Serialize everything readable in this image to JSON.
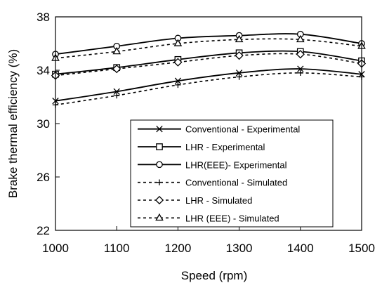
{
  "chart_data": {
    "type": "line",
    "title": "",
    "xlabel": "Speed (rpm)",
    "ylabel": "Brake thermal efficiency (%)",
    "xlim": [
      1000,
      1500
    ],
    "ylim": [
      22,
      38
    ],
    "xticks": [
      1000,
      1100,
      1200,
      1300,
      1400,
      1500
    ],
    "yticks": [
      22,
      26,
      30,
      34,
      38
    ],
    "grid": false,
    "legend_position": "lower-right",
    "x": [
      1000,
      1100,
      1200,
      1300,
      1400,
      1500
    ],
    "series": [
      {
        "name": "Conventional - Experimental",
        "marker": "x",
        "dashed": false,
        "values": [
          31.7,
          32.4,
          33.2,
          33.8,
          34.1,
          33.7
        ]
      },
      {
        "name": "LHR - Experimental",
        "marker": "square",
        "dashed": false,
        "values": [
          33.7,
          34.2,
          34.8,
          35.3,
          35.4,
          34.7
        ]
      },
      {
        "name": "LHR(EEE)- Experimental",
        "marker": "circle",
        "dashed": false,
        "values": [
          35.2,
          35.8,
          36.4,
          36.6,
          36.7,
          36.0
        ]
      },
      {
        "name": "Conventional - Simulated",
        "marker": "plus",
        "dashed": true,
        "values": [
          31.4,
          32.1,
          32.9,
          33.5,
          33.8,
          33.5
        ]
      },
      {
        "name": "LHR - Simulated",
        "marker": "diamond",
        "dashed": true,
        "values": [
          33.6,
          34.1,
          34.6,
          35.1,
          35.2,
          34.5
        ]
      },
      {
        "name": "LHR (EEE) - Simulated",
        "marker": "triangle",
        "dashed": true,
        "values": [
          34.9,
          35.4,
          36.0,
          36.3,
          36.3,
          35.8
        ]
      }
    ]
  }
}
